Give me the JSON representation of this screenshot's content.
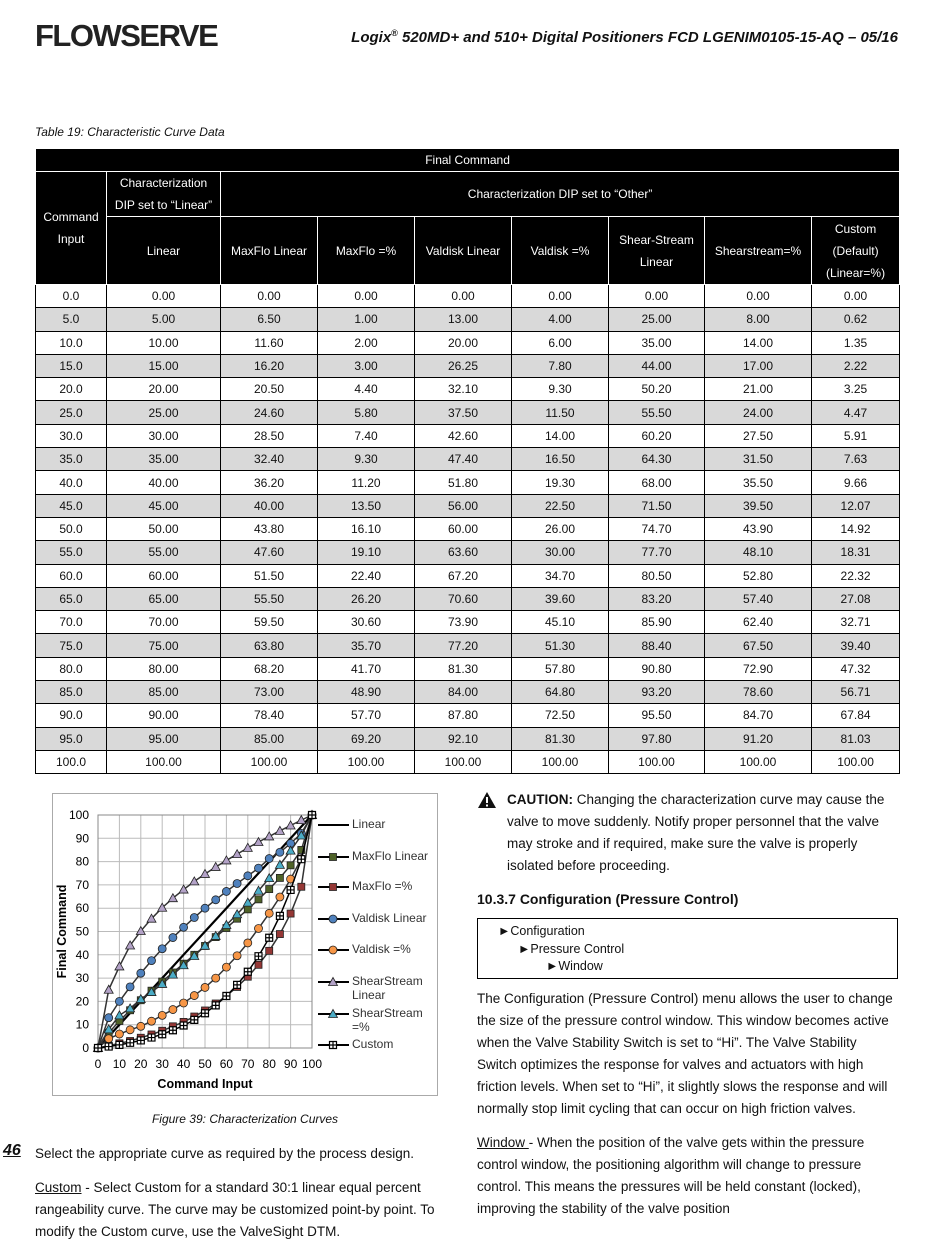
{
  "header": {
    "logo": "FLOWSERVE",
    "title_brand": "Logix",
    "title_mark": "®",
    "title_rest": " 520MD+ and 510+ Digital Positioners FCD LGENIM0105-15-AQ – 05/16"
  },
  "table": {
    "caption": "Table 19: Characteristic Curve Data",
    "top_header": "Final Command",
    "command_header": "Command Input",
    "linear_group": "Characterization DIP set to “Linear”",
    "other_group": "Characterization DIP set to “Other”",
    "columns": [
      "Linear",
      "MaxFlo Linear",
      "MaxFlo =%",
      "Valdisk Linear",
      "Valdisk =%",
      "Shear-Stream Linear",
      "Shearstream=%",
      "Custom (Default) (Linear=%)"
    ],
    "rows": [
      [
        "0.0",
        "0.00",
        "0.00",
        "0.00",
        "0.00",
        "0.00",
        "0.00",
        "0.00",
        "0.00"
      ],
      [
        "5.0",
        "5.00",
        "6.50",
        "1.00",
        "13.00",
        "4.00",
        "25.00",
        "8.00",
        "0.62"
      ],
      [
        "10.0",
        "10.00",
        "11.60",
        "2.00",
        "20.00",
        "6.00",
        "35.00",
        "14.00",
        "1.35"
      ],
      [
        "15.0",
        "15.00",
        "16.20",
        "3.00",
        "26.25",
        "7.80",
        "44.00",
        "17.00",
        "2.22"
      ],
      [
        "20.0",
        "20.00",
        "20.50",
        "4.40",
        "32.10",
        "9.30",
        "50.20",
        "21.00",
        "3.25"
      ],
      [
        "25.0",
        "25.00",
        "24.60",
        "5.80",
        "37.50",
        "11.50",
        "55.50",
        "24.00",
        "4.47"
      ],
      [
        "30.0",
        "30.00",
        "28.50",
        "7.40",
        "42.60",
        "14.00",
        "60.20",
        "27.50",
        "5.91"
      ],
      [
        "35.0",
        "35.00",
        "32.40",
        "9.30",
        "47.40",
        "16.50",
        "64.30",
        "31.50",
        "7.63"
      ],
      [
        "40.0",
        "40.00",
        "36.20",
        "11.20",
        "51.80",
        "19.30",
        "68.00",
        "35.50",
        "9.66"
      ],
      [
        "45.0",
        "45.00",
        "40.00",
        "13.50",
        "56.00",
        "22.50",
        "71.50",
        "39.50",
        "12.07"
      ],
      [
        "50.0",
        "50.00",
        "43.80",
        "16.10",
        "60.00",
        "26.00",
        "74.70",
        "43.90",
        "14.92"
      ],
      [
        "55.0",
        "55.00",
        "47.60",
        "19.10",
        "63.60",
        "30.00",
        "77.70",
        "48.10",
        "18.31"
      ],
      [
        "60.0",
        "60.00",
        "51.50",
        "22.40",
        "67.20",
        "34.70",
        "80.50",
        "52.80",
        "22.32"
      ],
      [
        "65.0",
        "65.00",
        "55.50",
        "26.20",
        "70.60",
        "39.60",
        "83.20",
        "57.40",
        "27.08"
      ],
      [
        "70.0",
        "70.00",
        "59.50",
        "30.60",
        "73.90",
        "45.10",
        "85.90",
        "62.40",
        "32.71"
      ],
      [
        "75.0",
        "75.00",
        "63.80",
        "35.70",
        "77.20",
        "51.30",
        "88.40",
        "67.50",
        "39.40"
      ],
      [
        "80.0",
        "80.00",
        "68.20",
        "41.70",
        "81.30",
        "57.80",
        "90.80",
        "72.90",
        "47.32"
      ],
      [
        "85.0",
        "85.00",
        "73.00",
        "48.90",
        "84.00",
        "64.80",
        "93.20",
        "78.60",
        "56.71"
      ],
      [
        "90.0",
        "90.00",
        "78.40",
        "57.70",
        "87.80",
        "72.50",
        "95.50",
        "84.70",
        "67.84"
      ],
      [
        "95.0",
        "95.00",
        "85.00",
        "69.20",
        "92.10",
        "81.30",
        "97.80",
        "91.20",
        "81.03"
      ],
      [
        "100.0",
        "100.00",
        "100.00",
        "100.00",
        "100.00",
        "100.00",
        "100.00",
        "100.00",
        "100.00"
      ]
    ]
  },
  "figure": {
    "caption": "Figure 39: Characterization Curves",
    "xlabel": "Command Input",
    "ylabel": "Final Command",
    "xlim": [
      0,
      100
    ],
    "ylim": [
      0,
      100
    ],
    "xticks": [
      0,
      10,
      20,
      30,
      40,
      50,
      60,
      70,
      80,
      90,
      100
    ],
    "yticks": [
      0,
      10,
      20,
      30,
      40,
      50,
      60,
      70,
      80,
      90,
      100
    ],
    "grid": true,
    "series": [
      {
        "name": "Linear",
        "color": "#000000",
        "marker": "none"
      },
      {
        "name": "MaxFlo Linear",
        "color": "#4f6228",
        "marker": "square"
      },
      {
        "name": "MaxFlo =%",
        "color": "#953735",
        "marker": "square"
      },
      {
        "name": "Valdisk Linear",
        "color": "#4f81bd",
        "marker": "circle"
      },
      {
        "name": "Valdisk =%",
        "color": "#f79646",
        "marker": "circle"
      },
      {
        "name": "ShearStream Linear",
        "color": "#b3a2c7",
        "marker": "triangle"
      },
      {
        "name": "ShearStream =%",
        "color": "#4bacc6",
        "marker": "triangle"
      },
      {
        "name": "Custom",
        "color": "#ffffff",
        "marker": "plus"
      }
    ]
  },
  "page_number": "46",
  "left": {
    "p1": "Select the appropriate curve as required by the process design.",
    "p2_term": "Custom",
    "p2_text": " - Select Custom for a standard 30:1 linear equal percent rangeability curve. The curve may be customized point-by point. To modify the Custom curve, use the ValveSight DTM."
  },
  "right": {
    "caution_label": "CAUTION:",
    "caution_text": " Changing the characterization curve may cause the valve to move suddenly. Notify proper personnel that the valve may stroke and if required, make sure the valve is properly isolated before proceeding.",
    "heading": "10.3.7 Configuration (Pressure Control)",
    "menu": [
      "►Configuration",
      "►Pressure Control",
      "►Window"
    ],
    "p1": "The Configuration (Pressure Control) menu allows the user to change the size of the pressure control window. This window becomes active when the Valve Stability Switch is set to “Hi”. The Valve Stability Switch optimizes the response for valves and actuators with high friction levels. When set to “Hi”, it slightly slows the response and will normally stop limit cycling that can occur on high friction valves.",
    "p2_term": "Window ",
    "p2_text": "- When the position of the valve gets within the pressure control window, the positioning algorithm will change to pressure control. This means the pressures will be held constant (locked), improving the stability of the valve position"
  }
}
